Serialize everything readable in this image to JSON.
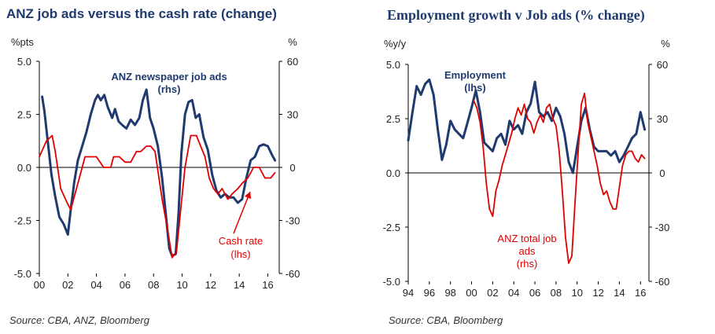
{
  "source_1": "Source:  CBA, ANZ, Bloomberg",
  "source_2": "Source:  CBA, Bloomberg",
  "colors": {
    "navy": "#1f3a6e",
    "red": "#e00000",
    "axis": "#000000"
  },
  "chart_data": [
    {
      "type": "line",
      "title": "ANZ job ads versus the cash rate (change)",
      "left_unit": "%pts",
      "right_unit": "%",
      "left_ylim": [
        -5.0,
        5.0
      ],
      "right_ylim": [
        -60,
        60
      ],
      "left_ticks": [
        "5.0",
        "2.5",
        "0.0",
        "-2.5",
        "-5.0"
      ],
      "right_ticks": [
        "60",
        "30",
        "0",
        "-30",
        "-60"
      ],
      "x_range": [
        2000,
        2016.8
      ],
      "x_ticks": [
        "00",
        "02",
        "04",
        "06",
        "08",
        "10",
        "12",
        "14",
        "16"
      ],
      "x_tick_years": [
        2000,
        2002,
        2004,
        2006,
        2008,
        2010,
        2012,
        2014,
        2016
      ],
      "zero_line": true,
      "annotations": [
        {
          "text": [
            "ANZ newspaper job ads",
            "(rhs)"
          ],
          "color": "navy"
        },
        {
          "text": [
            "Cash rate",
            "(lhs)"
          ],
          "color": "red"
        }
      ],
      "series": [
        {
          "name": "ANZ newspaper job ads",
          "axis": "right",
          "color": "navy",
          "x": [
            2000.2,
            2000.35,
            2000.6,
            2000.85,
            2001.1,
            2001.4,
            2001.7,
            2002.0,
            2002.2,
            2002.45,
            2002.7,
            2003.0,
            2003.3,
            2003.6,
            2003.9,
            2004.1,
            2004.3,
            2004.55,
            2004.8,
            2005.1,
            2005.3,
            2005.55,
            2005.8,
            2006.1,
            2006.4,
            2006.7,
            2007.0,
            2007.25,
            2007.5,
            2007.75,
            2008.0,
            2008.3,
            2008.6,
            2008.9,
            2009.1,
            2009.3,
            2009.55,
            2009.75,
            2009.95,
            2010.2,
            2010.45,
            2010.7,
            2010.95,
            2011.2,
            2011.5,
            2011.8,
            2012.1,
            2012.4,
            2012.7,
            2013.0,
            2013.3,
            2013.6,
            2013.9,
            2014.2,
            2014.5,
            2014.8,
            2015.1,
            2015.4,
            2015.7,
            2016.0,
            2016.3,
            2016.5
          ],
          "values": [
            40,
            32,
            14,
            -4,
            -16,
            -28,
            -32,
            -38,
            -24,
            -8,
            4,
            12,
            20,
            30,
            38,
            41,
            38,
            41,
            34,
            28,
            33,
            26,
            24,
            22,
            27,
            24,
            28,
            38,
            44,
            28,
            22,
            12,
            -6,
            -30,
            -46,
            -50,
            -49,
            -26,
            8,
            30,
            37,
            38,
            28,
            30,
            17,
            10,
            -4,
            -13,
            -17,
            -15,
            -17,
            -17,
            -20,
            -18,
            -6,
            4,
            6,
            12,
            13,
            12,
            7,
            4
          ]
        },
        {
          "name": "Cash rate",
          "axis": "left",
          "color": "red",
          "x": [
            2000.0,
            2000.5,
            2000.9,
            2001.1,
            2001.5,
            2001.9,
            2002.2,
            2002.6,
            2003.0,
            2003.2,
            2003.6,
            2004.0,
            2004.5,
            2005.0,
            2005.2,
            2005.6,
            2006.0,
            2006.4,
            2006.8,
            2007.1,
            2007.5,
            2007.8,
            2008.1,
            2008.6,
            2009.0,
            2009.3,
            2009.6,
            2009.9,
            2010.2,
            2010.6,
            2011.0,
            2011.3,
            2011.6,
            2011.9,
            2012.2,
            2012.5,
            2012.8,
            2013.2,
            2013.5,
            2013.9,
            2014.2,
            2014.6,
            2015.0,
            2015.4,
            2015.8,
            2016.2,
            2016.5
          ],
          "values": [
            0.5,
            1.25,
            1.5,
            0.8,
            -1.0,
            -1.6,
            -2.0,
            -1.0,
            0.0,
            0.5,
            0.5,
            0.5,
            0.0,
            0.0,
            0.5,
            0.5,
            0.25,
            0.25,
            0.75,
            0.75,
            1.0,
            1.0,
            0.75,
            -1.5,
            -3.0,
            -4.25,
            -4.0,
            -2.0,
            0.0,
            1.5,
            1.5,
            1.0,
            0.5,
            -0.5,
            -1.0,
            -1.25,
            -1.0,
            -1.5,
            -1.25,
            -1.0,
            -0.75,
            -0.5,
            0.0,
            0.0,
            -0.5,
            -0.5,
            -0.25
          ]
        }
      ]
    },
    {
      "type": "line",
      "title": "Employment growth v Job ads (% change)",
      "left_unit": "%y/y",
      "right_unit": "%",
      "left_ylim": [
        -5.0,
        5.0
      ],
      "right_ylim": [
        -60,
        60
      ],
      "left_ticks": [
        "5.0",
        "2.5",
        "0.0",
        "-2.5",
        "-5.0"
      ],
      "right_ticks": [
        "60",
        "30",
        "0",
        "-30",
        "-60"
      ],
      "x_range": [
        1994,
        2016.8
      ],
      "x_ticks": [
        "94",
        "96",
        "98",
        "00",
        "02",
        "04",
        "06",
        "08",
        "10",
        "12",
        "14",
        "16"
      ],
      "x_tick_years": [
        1994,
        1996,
        1998,
        2000,
        2002,
        2004,
        2006,
        2008,
        2010,
        2012,
        2014,
        2016
      ],
      "zero_line": true,
      "annotations": [
        {
          "text": [
            "Employment",
            "(lhs)"
          ],
          "color": "navy"
        },
        {
          "text": [
            "ANZ total job",
            "ads",
            "(rhs)"
          ],
          "color": "red"
        }
      ],
      "series": [
        {
          "name": "Employment",
          "axis": "left",
          "color": "navy",
          "x": [
            1994.0,
            1994.4,
            1994.8,
            1995.2,
            1995.6,
            1996.0,
            1996.4,
            1996.8,
            1997.2,
            1997.6,
            1998.0,
            1998.4,
            1998.8,
            1999.2,
            1999.6,
            2000.0,
            2000.4,
            2000.8,
            2001.2,
            2001.6,
            2002.0,
            2002.4,
            2002.8,
            2003.2,
            2003.6,
            2004.0,
            2004.4,
            2004.8,
            2005.2,
            2005.6,
            2006.0,
            2006.4,
            2006.8,
            2007.2,
            2007.6,
            2008.0,
            2008.4,
            2008.8,
            2009.2,
            2009.6,
            2010.0,
            2010.4,
            2010.8,
            2011.2,
            2011.6,
            2012.0,
            2012.4,
            2012.8,
            2013.2,
            2013.6,
            2014.0,
            2014.4,
            2014.8,
            2015.2,
            2015.6,
            2016.0,
            2016.4
          ],
          "values": [
            1.5,
            2.8,
            4.0,
            3.6,
            4.1,
            4.3,
            3.6,
            2.0,
            0.6,
            1.3,
            2.4,
            2.0,
            1.8,
            1.6,
            2.3,
            3.0,
            3.8,
            2.8,
            1.4,
            1.2,
            1.0,
            1.6,
            1.8,
            1.3,
            2.4,
            2.0,
            2.2,
            1.8,
            2.8,
            3.2,
            4.2,
            2.8,
            2.6,
            2.8,
            2.4,
            3.0,
            2.6,
            1.8,
            0.5,
            0.0,
            1.2,
            2.4,
            3.0,
            2.0,
            1.2,
            1.0,
            1.0,
            1.0,
            0.8,
            1.0,
            0.5,
            0.8,
            1.2,
            1.6,
            1.8,
            2.8,
            2.0
          ]
        },
        {
          "name": "ANZ total job ads",
          "axis": "right",
          "color": "red",
          "x": [
            2000.2,
            2000.5,
            2000.8,
            2001.1,
            2001.4,
            2001.7,
            2002.0,
            2002.3,
            2002.6,
            2002.9,
            2003.2,
            2003.5,
            2003.8,
            2004.1,
            2004.4,
            2004.7,
            2005.0,
            2005.3,
            2005.6,
            2005.9,
            2006.2,
            2006.5,
            2006.8,
            2007.1,
            2007.4,
            2007.7,
            2008.0,
            2008.3,
            2008.6,
            2008.9,
            2009.2,
            2009.5,
            2009.8,
            2010.1,
            2010.4,
            2010.7,
            2011.0,
            2011.3,
            2011.6,
            2011.9,
            2012.2,
            2012.5,
            2012.8,
            2013.1,
            2013.4,
            2013.7,
            2014.0,
            2014.3,
            2014.6,
            2014.9,
            2015.2,
            2015.5,
            2015.8,
            2016.1,
            2016.4
          ],
          "values": [
            40,
            36,
            28,
            14,
            -6,
            -20,
            -24,
            -10,
            -4,
            4,
            10,
            16,
            22,
            30,
            36,
            32,
            38,
            30,
            28,
            22,
            28,
            32,
            28,
            36,
            38,
            30,
            26,
            12,
            -10,
            -36,
            -50,
            -46,
            -16,
            12,
            38,
            44,
            28,
            20,
            12,
            4,
            -6,
            -12,
            -10,
            -16,
            -20,
            -20,
            -8,
            4,
            10,
            12,
            12,
            8,
            6,
            10,
            8
          ]
        }
      ]
    }
  ]
}
